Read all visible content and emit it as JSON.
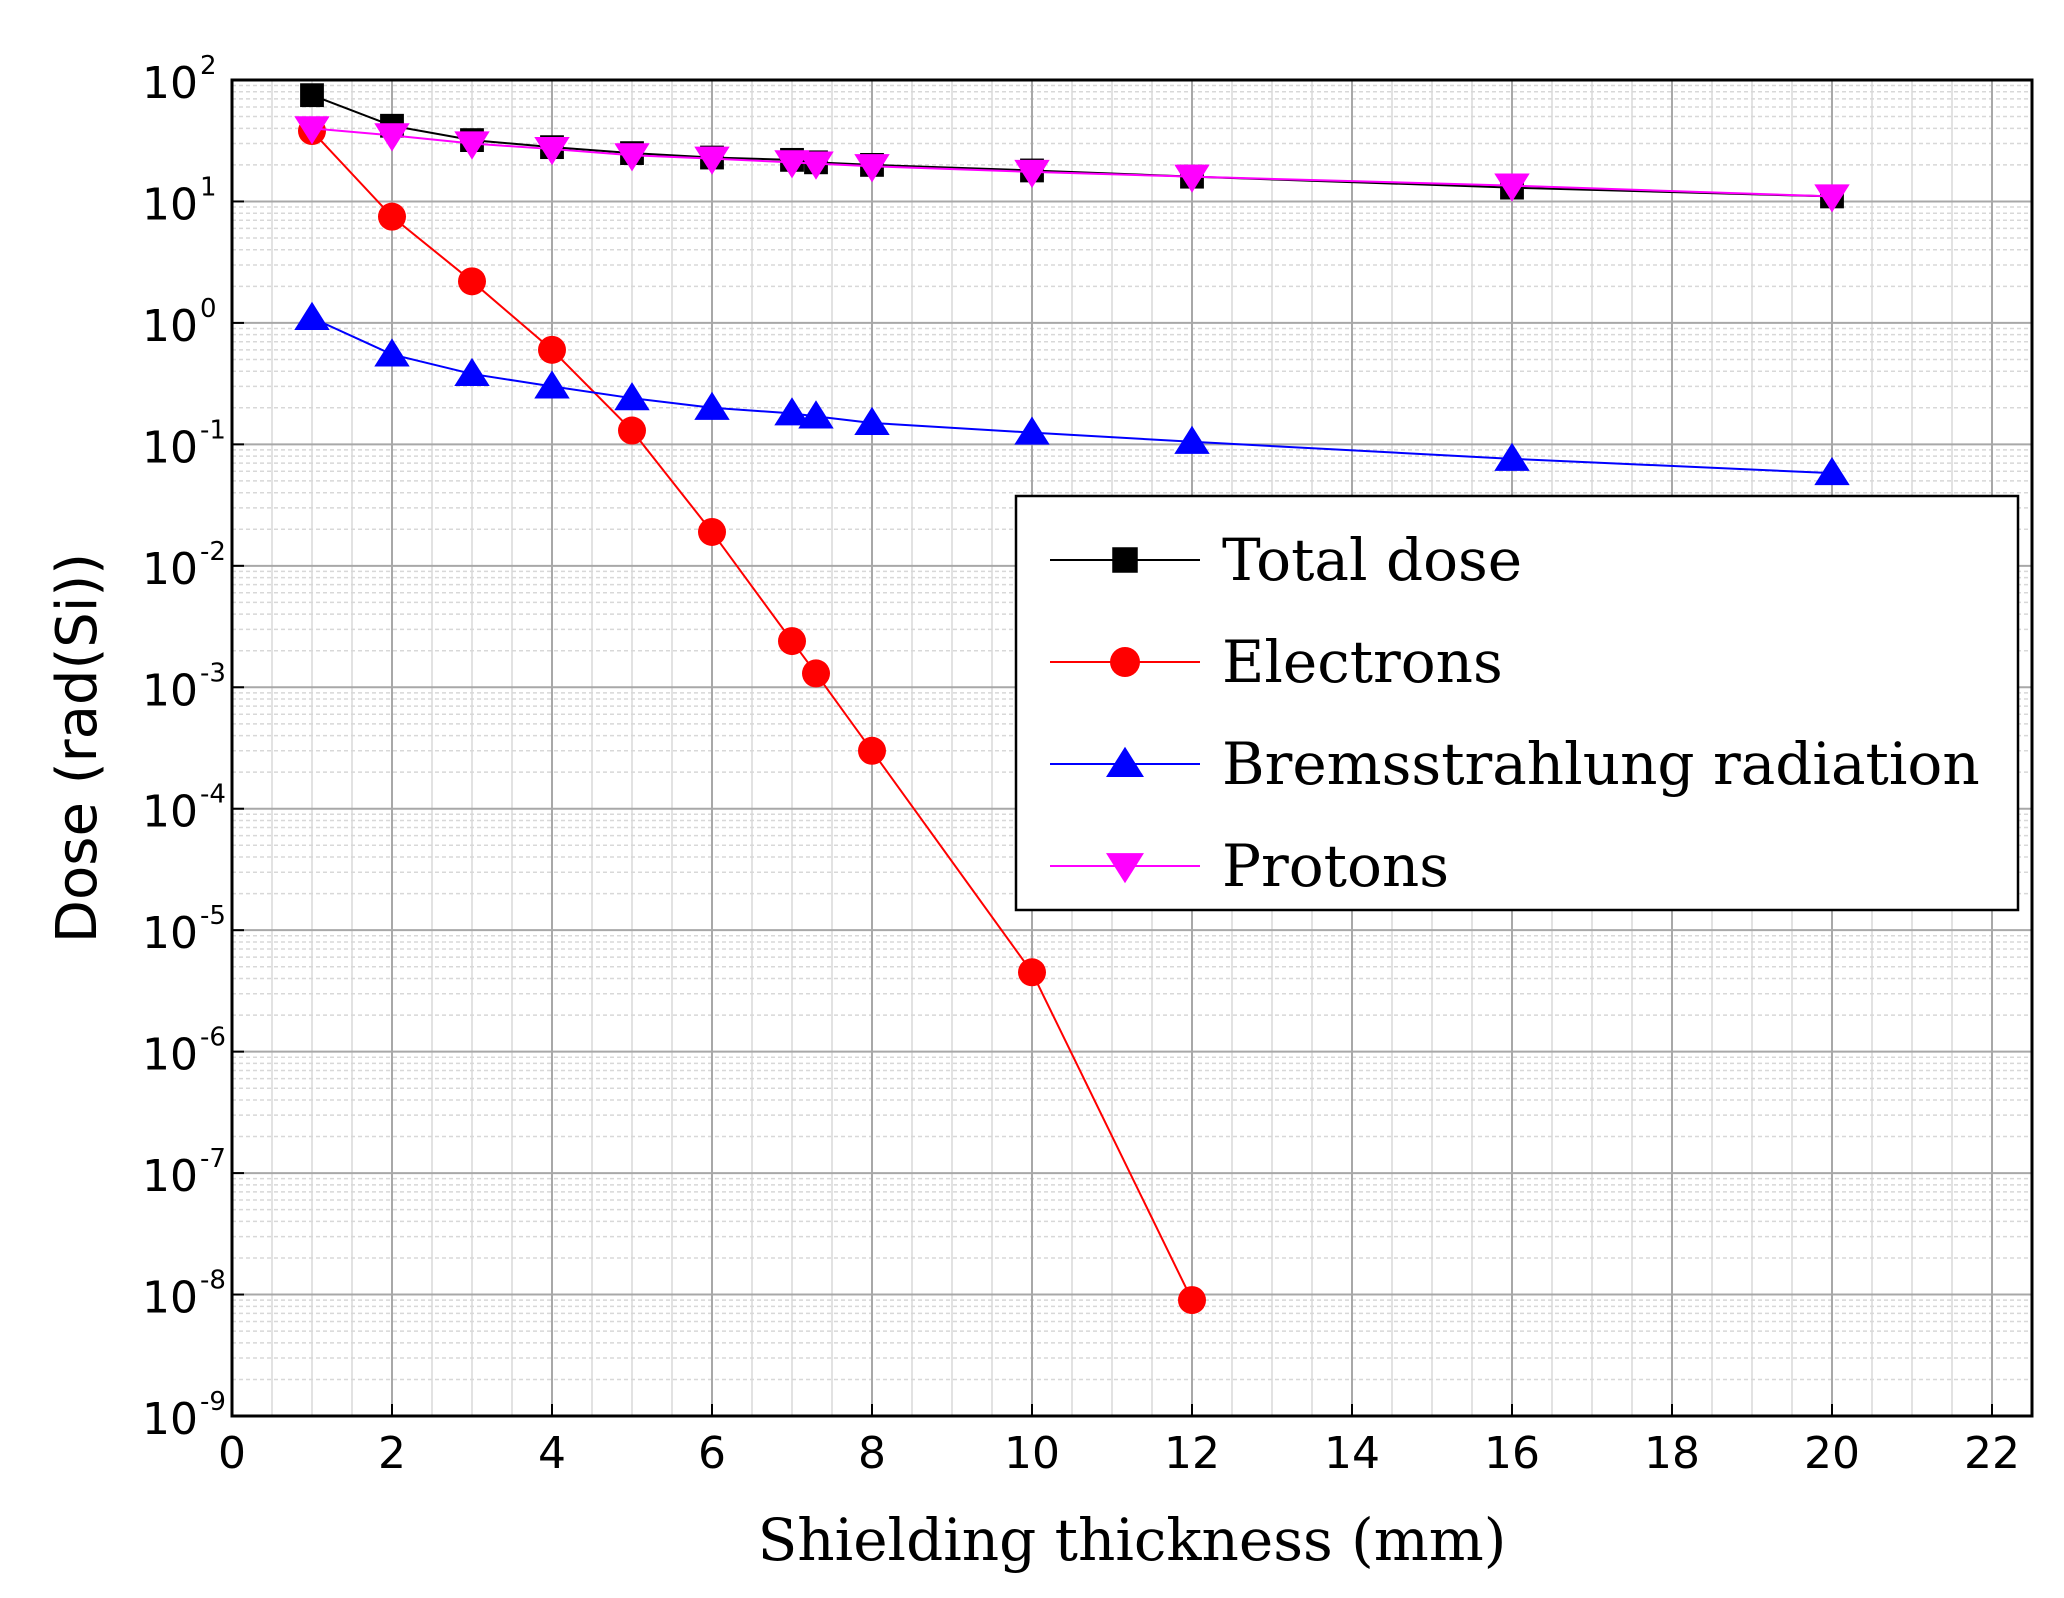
{
  "chart_data": {
    "type": "line",
    "title": "",
    "xlabel": "Shielding thickness (mm)",
    "ylabel": "Dose (rad(Si))",
    "xlim": [
      0,
      22.5
    ],
    "ylim_log10": [
      -9,
      2
    ],
    "yscale": "log",
    "x_ticks": [
      "0",
      "2",
      "4",
      "6",
      "8",
      "10",
      "12",
      "14",
      "16",
      "18",
      "20",
      "22"
    ],
    "y_ticks": [
      {
        "base": "10",
        "exp": "2"
      },
      {
        "base": "10",
        "exp": "1"
      },
      {
        "base": "10",
        "exp": "0"
      },
      {
        "base": "10",
        "exp": "-1"
      },
      {
        "base": "10",
        "exp": "-2"
      },
      {
        "base": "10",
        "exp": "-3"
      },
      {
        "base": "10",
        "exp": "-4"
      },
      {
        "base": "10",
        "exp": "-5"
      },
      {
        "base": "10",
        "exp": "-6"
      },
      {
        "base": "10",
        "exp": "-7"
      },
      {
        "base": "10",
        "exp": "-8"
      },
      {
        "base": "10",
        "exp": "-9"
      }
    ],
    "grid": true,
    "legend_position": "right-middle",
    "series": [
      {
        "name": "Total dose",
        "color": "#000000",
        "marker": "square",
        "x": [
          1,
          2,
          3,
          4,
          5,
          6,
          7,
          7.3,
          8,
          10,
          12,
          16,
          20
        ],
        "y": [
          75,
          42,
          32,
          28,
          25,
          23,
          22,
          21,
          20,
          18,
          16,
          13,
          11
        ]
      },
      {
        "name": "Electrons",
        "color": "#ff0000",
        "marker": "circle",
        "x": [
          1,
          2,
          3,
          4,
          5,
          6,
          7,
          7.3,
          8,
          10,
          12
        ],
        "y": [
          38,
          7.5,
          2.2,
          0.6,
          0.13,
          0.019,
          0.0024,
          0.0013,
          0.0003,
          4.5e-06,
          9e-09
        ]
      },
      {
        "name": "Bremsstrahlung radiation",
        "color": "#0000ff",
        "marker": "triangle-up",
        "x": [
          1,
          2,
          3,
          4,
          5,
          6,
          7,
          7.3,
          8,
          10,
          12,
          16,
          20
        ],
        "y": [
          1.1,
          0.55,
          0.38,
          0.3,
          0.24,
          0.2,
          0.18,
          0.17,
          0.15,
          0.125,
          0.105,
          0.076,
          0.058
        ]
      },
      {
        "name": "Protons",
        "color": "#ff00ff",
        "marker": "triangle-down",
        "x": [
          1,
          2,
          3,
          4,
          5,
          6,
          7,
          7.3,
          8,
          10,
          12,
          16,
          20
        ],
        "y": [
          40,
          35,
          30,
          27,
          24,
          22.5,
          21,
          20.5,
          19.5,
          17.5,
          16,
          13.5,
          11
        ]
      }
    ]
  }
}
